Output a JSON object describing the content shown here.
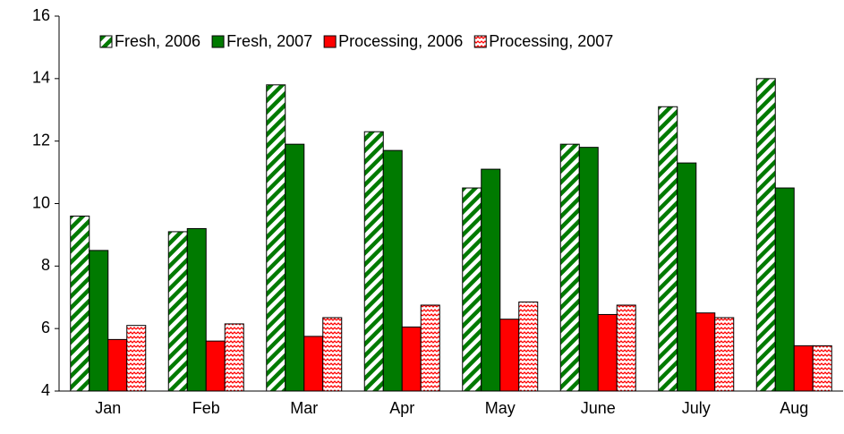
{
  "chart_data": {
    "type": "bar",
    "categories": [
      "Jan",
      "Feb",
      "Mar",
      "Apr",
      "May",
      "June",
      "July",
      "Aug"
    ],
    "series": [
      {
        "name": "Fresh, 2006",
        "color": "#007a00",
        "pattern": "diagonal",
        "values": [
          9.6,
          9.1,
          13.8,
          12.3,
          10.5,
          11.9,
          13.1,
          14.0
        ]
      },
      {
        "name": "Fresh, 2007",
        "color": "#007a00",
        "pattern": "solid",
        "values": [
          8.5,
          9.2,
          11.9,
          11.7,
          11.1,
          11.8,
          11.3,
          10.5
        ]
      },
      {
        "name": "Processing, 2006",
        "color": "#ff0000",
        "pattern": "solid",
        "values": [
          5.65,
          5.6,
          5.75,
          6.05,
          6.3,
          6.45,
          6.5,
          5.45
        ]
      },
      {
        "name": "Processing, 2007",
        "color": "#ff0000",
        "pattern": "wave",
        "values": [
          6.1,
          6.15,
          6.35,
          6.75,
          6.85,
          6.75,
          6.35,
          5.45
        ]
      }
    ],
    "ylim": [
      4,
      16
    ],
    "yticks": [
      4,
      6,
      8,
      10,
      12,
      14,
      16
    ],
    "grid": false,
    "legend": "top"
  }
}
